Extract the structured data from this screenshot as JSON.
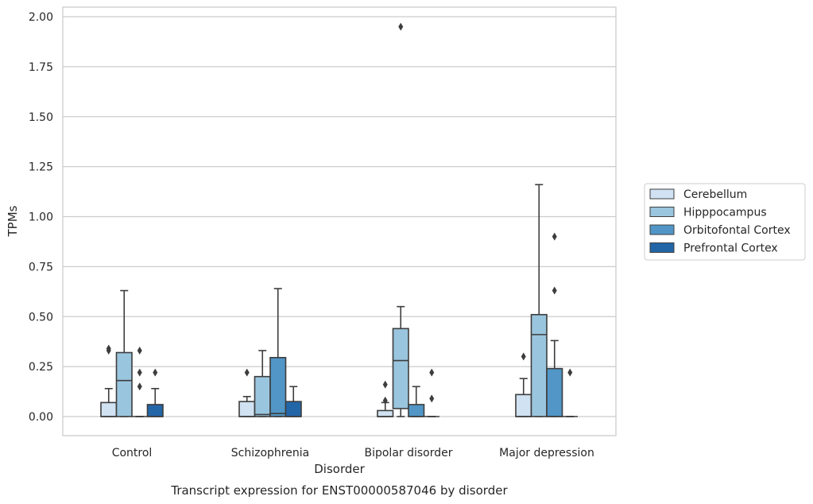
{
  "chart_data": {
    "type": "box",
    "caption": "Transcript expression for ENST00000587046 by disorder",
    "xlabel": "Disorder",
    "ylabel": "TPMs",
    "ylim": [
      -0.1,
      2.05
    ],
    "yticks": [
      "0.00",
      "0.25",
      "0.50",
      "0.75",
      "1.00",
      "1.25",
      "1.50",
      "1.75",
      "2.00"
    ],
    "categories": [
      "Control",
      "Schizophrenia",
      "Bipolar disorder",
      "Major depression"
    ],
    "grid": "horizontal",
    "legend_position": "right",
    "series": [
      {
        "name": "Cerebellum",
        "color": "#d1e2f2",
        "boxes": [
          {
            "whislo": 0.0,
            "q1": 0.0,
            "med": 0.0,
            "q3": 0.07,
            "whishi": 0.14,
            "fliers": [
              0.33,
              0.34
            ]
          },
          {
            "whislo": 0.0,
            "q1": 0.0,
            "med": 0.0,
            "q3": 0.075,
            "whishi": 0.1,
            "fliers": [
              0.22
            ]
          },
          {
            "whislo": 0.0,
            "q1": 0.0,
            "med": 0.0,
            "q3": 0.03,
            "whishi": 0.07,
            "fliers": [
              0.08,
              0.16
            ]
          },
          {
            "whislo": 0.0,
            "q1": 0.0,
            "med": 0.0,
            "q3": 0.11,
            "whishi": 0.19,
            "fliers": [
              0.3
            ]
          }
        ]
      },
      {
        "name": "Hipppocampus",
        "color": "#9ac5de",
        "boxes": [
          {
            "whislo": 0.0,
            "q1": 0.0,
            "med": 0.18,
            "q3": 0.32,
            "whishi": 0.63,
            "fliers": []
          },
          {
            "whislo": 0.0,
            "q1": 0.0,
            "med": 0.01,
            "q3": 0.2,
            "whishi": 0.33,
            "fliers": []
          },
          {
            "whislo": 0.0,
            "q1": 0.04,
            "med": 0.28,
            "q3": 0.44,
            "whishi": 0.55,
            "fliers": [
              1.95
            ]
          },
          {
            "whislo": 0.0,
            "q1": 0.0,
            "med": 0.41,
            "q3": 0.51,
            "whishi": 1.16,
            "fliers": []
          }
        ]
      },
      {
        "name": "Orbitofontal Cortex",
        "color": "#5196c6",
        "boxes": [
          {
            "whislo": 0.0,
            "q1": 0.0,
            "med": 0.0,
            "q3": 0.0,
            "whishi": 0.0,
            "fliers": [
              0.15,
              0.22,
              0.33
            ]
          },
          {
            "whislo": 0.0,
            "q1": 0.0,
            "med": 0.015,
            "q3": 0.295,
            "whishi": 0.64,
            "fliers": []
          },
          {
            "whislo": 0.0,
            "q1": 0.0,
            "med": 0.0,
            "q3": 0.06,
            "whishi": 0.15,
            "fliers": []
          },
          {
            "whislo": 0.0,
            "q1": 0.0,
            "med": 0.0,
            "q3": 0.24,
            "whishi": 0.38,
            "fliers": [
              0.63,
              0.9
            ]
          }
        ]
      },
      {
        "name": "Prefrontal Cortex",
        "color": "#2366a8",
        "boxes": [
          {
            "whislo": 0.0,
            "q1": 0.0,
            "med": 0.0,
            "q3": 0.06,
            "whishi": 0.14,
            "fliers": [
              0.22
            ]
          },
          {
            "whislo": 0.0,
            "q1": 0.0,
            "med": 0.0,
            "q3": 0.075,
            "whishi": 0.15,
            "fliers": []
          },
          {
            "whislo": 0.0,
            "q1": 0.0,
            "med": 0.0,
            "q3": 0.0,
            "whishi": 0.0,
            "fliers": [
              0.09,
              0.22
            ]
          },
          {
            "whislo": 0.0,
            "q1": 0.0,
            "med": 0.0,
            "q3": 0.0,
            "whishi": 0.0,
            "fliers": [
              0.22
            ]
          }
        ]
      }
    ]
  }
}
